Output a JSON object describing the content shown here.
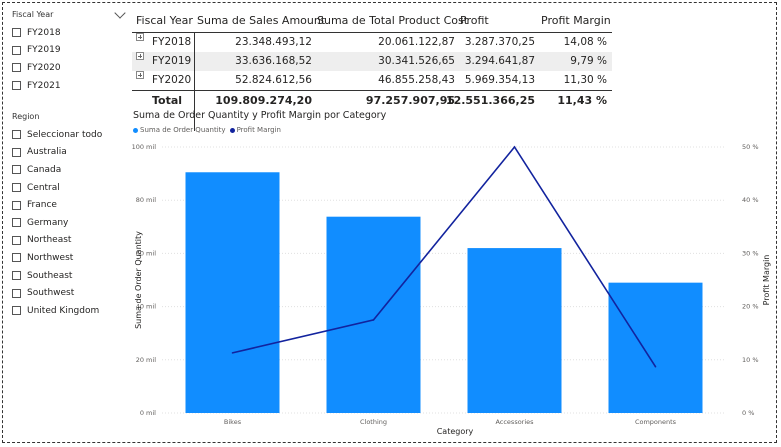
{
  "slicers": {
    "fiscal_year": {
      "title": "Fiscal Year",
      "items": [
        "FY2018",
        "FY2019",
        "FY2020",
        "FY2021"
      ]
    },
    "region": {
      "title": "Region",
      "items": [
        "Seleccionar todo",
        "Australia",
        "Canada",
        "Central",
        "France",
        "Germany",
        "Northeast",
        "Northwest",
        "Southeast",
        "Southwest",
        "United Kingdom"
      ]
    }
  },
  "matrix": {
    "headers": [
      "Fiscal Year",
      "Suma de Sales Amount",
      "Suma de Total Product Cost",
      "Profit",
      "Profit Margin"
    ],
    "rows": [
      {
        "year": "FY2018",
        "sales": "23.348.493,12",
        "cost": "20.061.122,87",
        "profit": "3.287.370,25",
        "margin": "14,08 %"
      },
      {
        "year": "FY2019",
        "sales": "33.636.168,52",
        "cost": "30.341.526,65",
        "profit": "3.294.641,87",
        "margin": "9,79 %"
      },
      {
        "year": "FY2020",
        "sales": "52.824.612,56",
        "cost": "46.855.258,43",
        "profit": "5.969.354,13",
        "margin": "11,30 %"
      }
    ],
    "total": {
      "label": "Total",
      "sales": "109.809.274,20",
      "cost": "97.257.907,95",
      "profit": "12.551.366,25",
      "margin": "11,43 %"
    }
  },
  "chart": {
    "title": "Suma de Order Quantity y Profit Margin por Category",
    "legend": [
      "Suma de Order Quantity",
      "Profit Margin"
    ],
    "colors": {
      "bar": "#118dff",
      "line": "#12239e",
      "axis_text": "#605e5c",
      "grid": "#e0e0e0"
    }
  },
  "chart_data": {
    "type": "bar",
    "title": "Suma de Order Quantity y Profit Margin por Category",
    "categories": [
      "Bikes",
      "Clothing",
      "Accessories",
      "Components"
    ],
    "series": [
      {
        "name": "Suma de Order Quantity",
        "type": "bar",
        "axis": "left",
        "values": [
          90500,
          73800,
          62000,
          49000
        ]
      },
      {
        "name": "Profit Margin",
        "type": "line",
        "axis": "right",
        "values": [
          11.3,
          17.5,
          50.0,
          8.7
        ]
      }
    ],
    "xlabel": "Category",
    "ylabel": "Suma de Order Quantity",
    "y2label": "Profit Margin",
    "ylim": [
      0,
      100000
    ],
    "y2lim": [
      0,
      50
    ],
    "yticks": [
      "0 mil",
      "20 mil",
      "40 mil",
      "60 mil",
      "80 mil",
      "100 mil"
    ],
    "y2ticks": [
      "0 %",
      "10 %",
      "20 %",
      "30 %",
      "40 %",
      "50 %"
    ],
    "grid": true,
    "legend_position": "top-left"
  }
}
